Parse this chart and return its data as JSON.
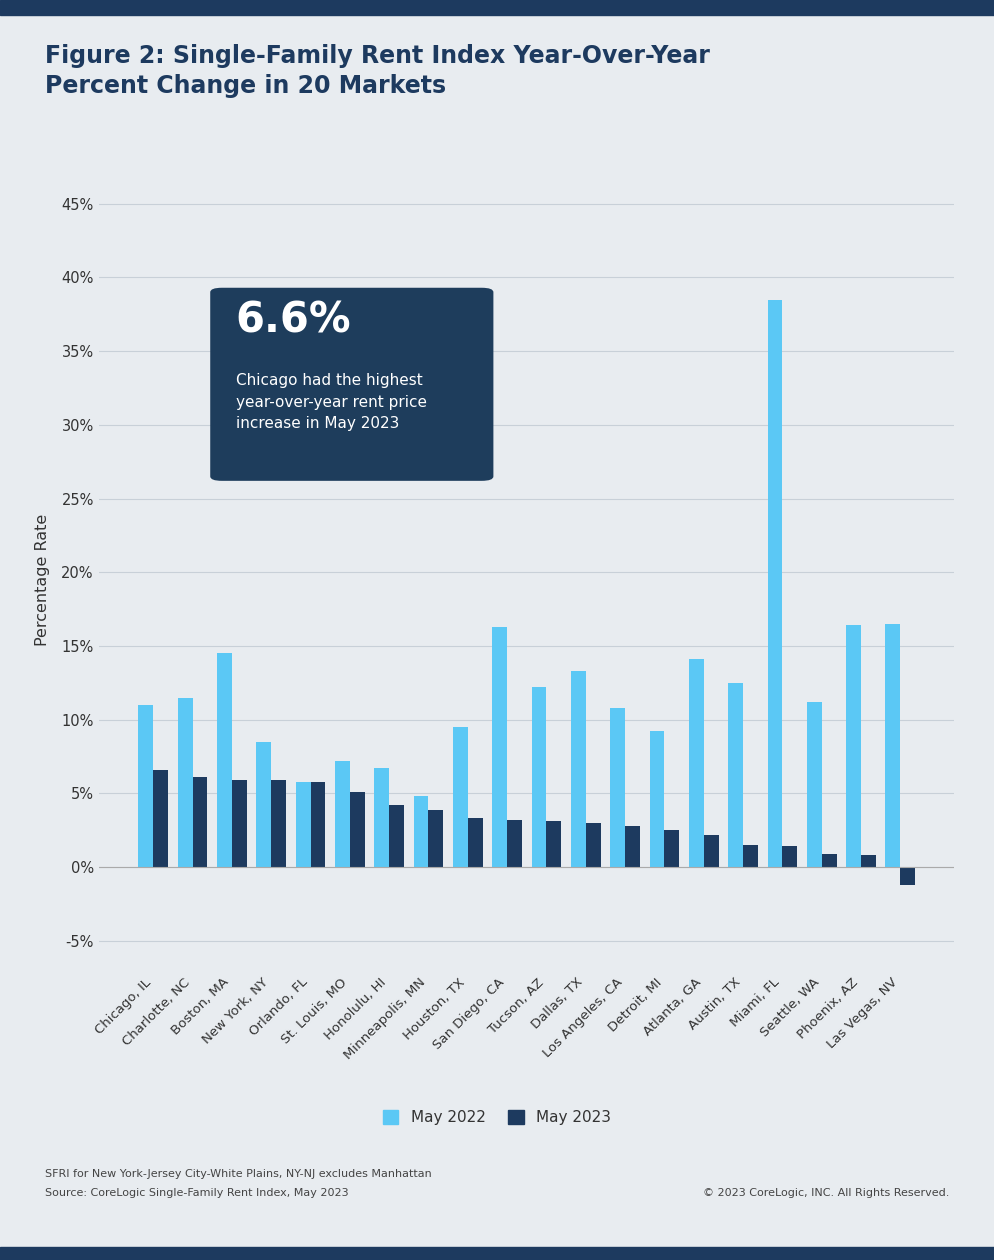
{
  "title": "Figure 2: Single-Family Rent Index Year-Over-Year\nPercent Change in 20 Markets",
  "title_fontsize": 17,
  "ylabel": "Percentage Rate",
  "background_color": "#e8ecf0",
  "plot_bg_color": "#e8ecf0",
  "bar_color_2022": "#5bc8f5",
  "bar_color_2023": "#1d3a5f",
  "categories": [
    "Chicago, IL",
    "Charlotte, NC",
    "Boston, MA",
    "New York, NY",
    "Orlando, FL",
    "St. Louis, MO",
    "Honolulu, HI",
    "Minneapolis, MN",
    "Houston, TX",
    "San Diego, CA",
    "Tucson, AZ",
    "Dallas, TX",
    "Los Angeles, CA",
    "Detroit, MI",
    "Atlanta, GA",
    "Austin, TX",
    "Miami, FL",
    "Seattle, WA",
    "Phoenix, AZ",
    "Las Vegas, NV"
  ],
  "may_2022": [
    11.0,
    11.5,
    14.5,
    8.5,
    5.8,
    7.2,
    6.7,
    4.8,
    9.5,
    16.3,
    12.2,
    13.3,
    10.8,
    9.2,
    14.1,
    12.5,
    38.5,
    11.2,
    16.4,
    16.5
  ],
  "may_2023": [
    6.6,
    6.1,
    5.9,
    5.9,
    5.8,
    5.1,
    4.2,
    3.9,
    3.3,
    3.2,
    3.1,
    3.0,
    2.8,
    2.5,
    2.2,
    1.5,
    1.4,
    0.9,
    0.8,
    -1.2
  ],
  "ylim_min": -7,
  "ylim_max": 46,
  "yticks": [
    -5,
    0,
    5,
    10,
    15,
    20,
    25,
    30,
    35,
    40,
    45
  ],
  "annotation_text_large": "6.6%",
  "annotation_text_small": "Chicago had the highest\nyear-over-year rent price\nincrease in May 2023",
  "annotation_box_color": "#1e3d5c",
  "annotation_text_color": "#ffffff",
  "legend_label_2022": "May 2022",
  "legend_label_2023": "May 2023",
  "footnote_line1": "SFRI for New York-Jersey City-White Plains, NY-NJ excludes Manhattan",
  "footnote_line2": "Source: CoreLogic Single-Family Rent Index, May 2023",
  "footnote_right": "© 2023 CoreLogic, INC. All Rights Reserved.",
  "top_border_color": "#1d3a5f",
  "bottom_border_color": "#1d3a5f",
  "grid_color": "#c8d0d8"
}
